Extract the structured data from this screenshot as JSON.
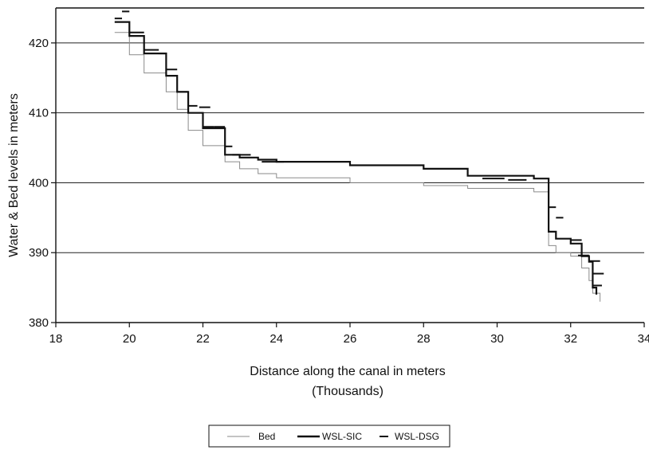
{
  "chart_data": {
    "type": "line",
    "title": "",
    "xlabel": "Distance along the canal in meters",
    "xlabel_sub": "(Thousands)",
    "ylabel": "Water & Bed levels in meters",
    "xlim": [
      18,
      34
    ],
    "ylim": [
      380,
      425
    ],
    "x_ticks": [
      "18",
      "20",
      "22",
      "24",
      "26",
      "28",
      "30",
      "32",
      "34"
    ],
    "y_ticks": [
      "380",
      "390",
      "400",
      "410",
      "420"
    ],
    "grid": "horizontal",
    "legend_position": "bottom-center",
    "colors": {
      "bed": "#8a8a8a",
      "wsl_sic": "#111111",
      "wsl_dsg": "#111111"
    },
    "series": [
      {
        "name": "Bed",
        "style": "thin-step",
        "x": [
          19.6,
          20.0,
          20.0,
          20.4,
          20.4,
          21.0,
          21.0,
          21.3,
          21.3,
          21.6,
          21.6,
          22.0,
          22.0,
          22.6,
          22.6,
          23.0,
          23.0,
          23.5,
          23.5,
          24.0,
          24.0,
          26.0,
          26.0,
          28.0,
          28.0,
          29.2,
          29.2,
          31.0,
          31.0,
          31.4,
          31.4,
          31.6,
          31.6,
          32.0,
          32.0,
          32.3,
          32.3,
          32.5,
          32.5,
          32.6,
          32.6,
          32.8,
          32.8
        ],
        "y": [
          421.5,
          421.5,
          418.3,
          418.3,
          415.7,
          415.7,
          413.0,
          413.0,
          410.5,
          410.5,
          407.5,
          407.5,
          405.3,
          405.3,
          403.0,
          403.0,
          402.0,
          402.0,
          401.3,
          401.3,
          400.7,
          400.7,
          400.0,
          400.0,
          399.6,
          399.6,
          399.2,
          399.2,
          398.7,
          398.7,
          391.0,
          391.0,
          390.0,
          390.0,
          389.5,
          389.5,
          387.8,
          387.8,
          386.0,
          386.0,
          384.2,
          384.2,
          383.0
        ]
      },
      {
        "name": "WSL-SIC",
        "style": "thick-step",
        "x": [
          19.6,
          20.0,
          20.0,
          20.4,
          20.4,
          21.0,
          21.0,
          21.3,
          21.3,
          21.6,
          21.6,
          22.0,
          22.0,
          22.6,
          22.6,
          23.0,
          23.0,
          23.5,
          23.5,
          24.0,
          24.0,
          26.0,
          26.0,
          28.0,
          28.0,
          29.2,
          29.2,
          31.0,
          31.0,
          31.4,
          31.4,
          31.6,
          31.6,
          32.0,
          32.0,
          32.3,
          32.3,
          32.5,
          32.5,
          32.6,
          32.6,
          32.7,
          32.7
        ],
        "y": [
          423.0,
          423.0,
          421.0,
          421.0,
          418.5,
          418.5,
          415.3,
          415.3,
          413.0,
          413.0,
          410.0,
          410.0,
          407.8,
          407.8,
          404.0,
          404.0,
          403.6,
          403.6,
          403.3,
          403.3,
          403.0,
          403.0,
          402.5,
          402.5,
          402.0,
          402.0,
          401.0,
          401.0,
          400.6,
          400.6,
          393.0,
          393.0,
          392.0,
          392.0,
          391.3,
          391.3,
          389.5,
          389.5,
          388.7,
          388.7,
          385.0,
          385.0,
          384.0
        ]
      },
      {
        "name": "WSL-DSG",
        "style": "dash",
        "segments": [
          [
            19.6,
            19.8,
            423.5
          ],
          [
            19.8,
            20.0,
            424.5
          ],
          [
            20.0,
            20.4,
            421.5
          ],
          [
            20.4,
            20.8,
            419.0
          ],
          [
            20.8,
            21.0,
            418.5
          ],
          [
            21.0,
            21.3,
            416.2
          ],
          [
            21.3,
            21.6,
            413.0
          ],
          [
            21.6,
            21.85,
            411.0
          ],
          [
            21.9,
            22.2,
            410.8
          ],
          [
            22.0,
            22.3,
            408.0
          ],
          [
            22.3,
            22.6,
            408.0
          ],
          [
            22.6,
            22.8,
            405.2
          ],
          [
            22.8,
            23.3,
            404.0
          ],
          [
            23.6,
            24.2,
            403.0
          ],
          [
            29.6,
            30.2,
            400.6
          ],
          [
            30.3,
            30.8,
            400.4
          ],
          [
            31.4,
            31.6,
            396.5
          ],
          [
            31.6,
            31.8,
            395.0
          ],
          [
            32.0,
            32.3,
            391.8
          ],
          [
            32.2,
            32.5,
            389.6
          ],
          [
            32.5,
            32.8,
            388.8
          ],
          [
            32.6,
            32.9,
            387.0
          ],
          [
            32.6,
            32.85,
            385.3
          ]
        ]
      }
    ]
  }
}
